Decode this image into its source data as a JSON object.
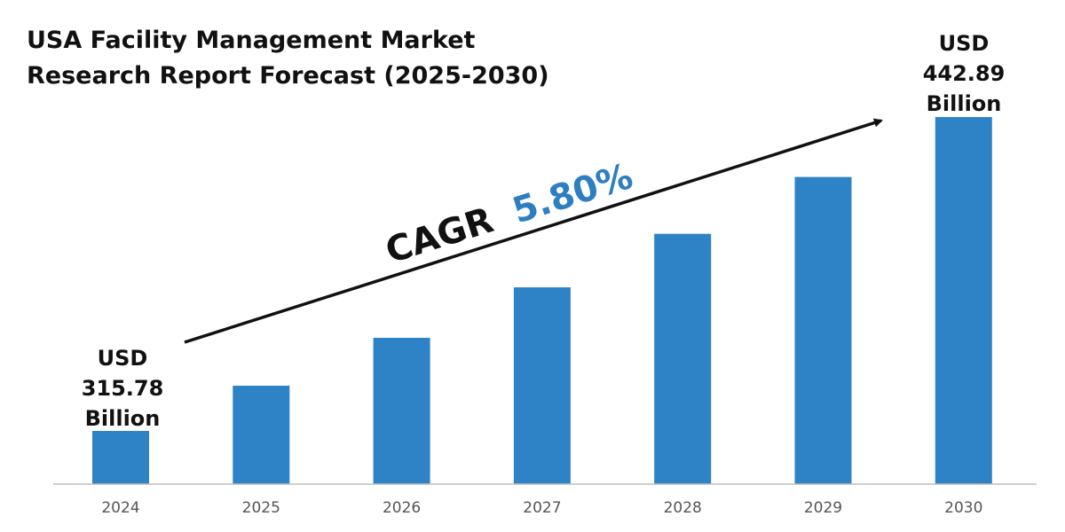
{
  "title_lines": [
    "USA Facility Management Market",
    "Research Report Forecast (2025-2030)"
  ],
  "annotation": {
    "cagr_label": "CAGR",
    "cagr_value": "5.80%",
    "cagr_value_color": "#2E7EC2",
    "start_label_lines": [
      "USD",
      "315.78",
      "Billion"
    ],
    "end_label_lines": [
      "USD",
      "442.89",
      "Billion"
    ]
  },
  "colors": {
    "bar": "#2E82C6",
    "axis": "#BFBFBF",
    "text": "#111111"
  },
  "chart_data": {
    "type": "bar",
    "categories": [
      "2024",
      "2025",
      "2026",
      "2027",
      "2028",
      "2029",
      "2030"
    ],
    "values": [
      315.78,
      334.1,
      353.5,
      373.9,
      395.6,
      418.6,
      442.89
    ],
    "title": "USA Facility Management Market Research Report Forecast (2025-2030)",
    "xlabel": "",
    "ylabel": "",
    "grid": false,
    "legend": "none"
  }
}
